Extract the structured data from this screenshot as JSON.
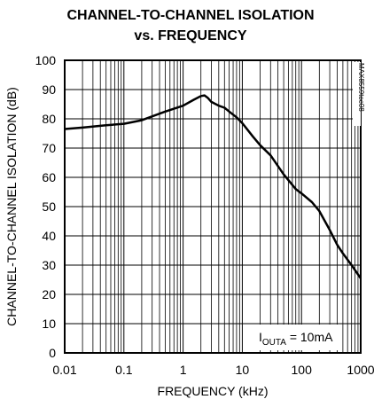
{
  "chart_data": {
    "type": "line",
    "title_lines": [
      "CHANNEL-TO-CHANNEL ISOLATION",
      "vs. FREQUENCY"
    ],
    "xlabel": "FREQUENCY (kHz)",
    "ylabel": "CHANNEL-TO-CHANNEL ISOLATION (dB)",
    "xscale": "log",
    "xlim": [
      0.01,
      1000
    ],
    "ylim": [
      0,
      100
    ],
    "x_ticks": [
      0.01,
      0.1,
      1,
      10,
      100,
      1000
    ],
    "x_tick_labels": [
      "0.01",
      "0.1",
      "1",
      "10",
      "100",
      "1000"
    ],
    "y_ticks": [
      0,
      10,
      20,
      30,
      40,
      50,
      60,
      70,
      80,
      90,
      100
    ],
    "y_tick_labels": [
      "0",
      "10",
      "20",
      "30",
      "40",
      "50",
      "60",
      "70",
      "80",
      "90",
      "100"
    ],
    "grid": true,
    "figure_code": "MAX8559toc08",
    "annotation": {
      "base": "I",
      "subscript": "OUTA",
      "rest": " = 10mA"
    },
    "series": [
      {
        "x": [
          0.01,
          0.02,
          0.05,
          0.1,
          0.2,
          0.5,
          1,
          1.5,
          2,
          2.3,
          2.6,
          3,
          4,
          5,
          6,
          8,
          10,
          15,
          20,
          30,
          50,
          80,
          100,
          150,
          200,
          300,
          400,
          500,
          700,
          1000
        ],
        "y": [
          76.5,
          77,
          77.8,
          78.3,
          79.5,
          82.5,
          84.5,
          86.5,
          87.8,
          88,
          87.2,
          85.8,
          84.5,
          83.8,
          82.5,
          80.5,
          78.5,
          74,
          71,
          67.5,
          61,
          56,
          54.5,
          51.5,
          48.5,
          42,
          37,
          34,
          30,
          25.5
        ]
      }
    ]
  }
}
